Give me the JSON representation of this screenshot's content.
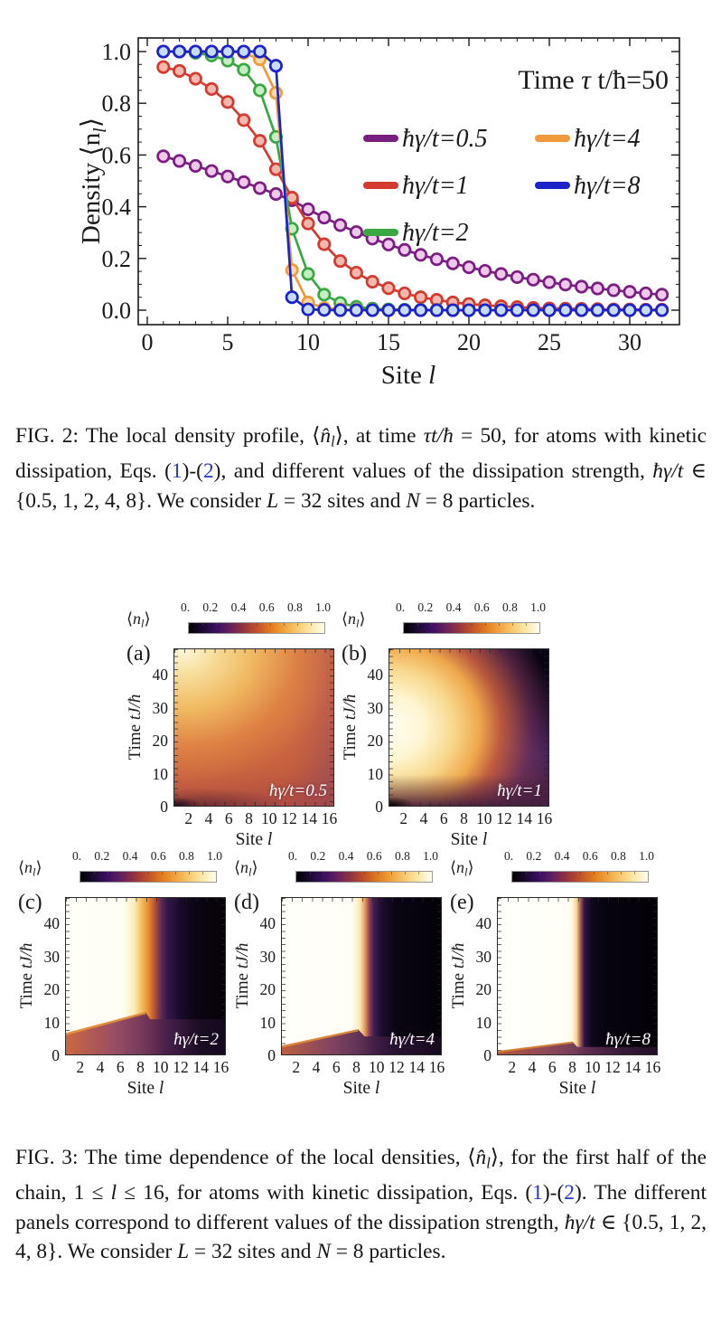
{
  "colors": {
    "link_blue": "#2737C8",
    "axis_ink": "#1a1a1a"
  },
  "chart_data": [
    {
      "type": "line",
      "title_segments": [
        {
          "t": "Time ",
          "s": ""
        },
        {
          "t": "τ",
          "s": "i"
        },
        {
          "t": " t/ħ=50",
          "s": ""
        }
      ],
      "xlabel_segments": [
        {
          "t": "Site ",
          "s": ""
        },
        {
          "t": "l",
          "s": "i"
        }
      ],
      "ylabel_main": "Density ⟨n",
      "ylabel_sub": "l",
      "ylabel_end": "⟩",
      "xlim": [
        0,
        32.5
      ],
      "ylim": [
        0.0,
        1.0
      ],
      "xticks": [
        0,
        5,
        10,
        15,
        20,
        25,
        30
      ],
      "ytick_labels": [
        "0.0",
        "0.2",
        "0.4",
        "0.6",
        "0.8",
        "1.0"
      ],
      "grid": false,
      "legend_position": "inside center-right, two columns",
      "marker": "open-circle",
      "x": [
        1,
        2,
        3,
        4,
        5,
        6,
        7,
        8,
        9,
        10,
        11,
        12,
        13,
        14,
        15,
        16,
        17,
        18,
        19,
        20,
        21,
        22,
        23,
        24,
        25,
        26,
        27,
        28,
        29,
        30,
        31,
        32
      ],
      "series": [
        {
          "name": "ħγ/t=0.5",
          "color": "#7B1E82",
          "fill": "#F0C8EC",
          "values": [
            0.595,
            0.577,
            0.558,
            0.538,
            0.517,
            0.495,
            0.472,
            0.449,
            0.425,
            0.39,
            0.358,
            0.329,
            0.302,
            0.277,
            0.254,
            0.233,
            0.214,
            0.197,
            0.181,
            0.166,
            0.152,
            0.14,
            0.128,
            0.118,
            0.108,
            0.099,
            0.091,
            0.084,
            0.077,
            0.071,
            0.065,
            0.06
          ]
        },
        {
          "name": "ħγ/t=1",
          "color": "#D43A2F",
          "fill": "#F6B8AE",
          "values": [
            0.94,
            0.925,
            0.895,
            0.855,
            0.805,
            0.735,
            0.655,
            0.545,
            0.435,
            0.335,
            0.255,
            0.19,
            0.145,
            0.11,
            0.085,
            0.065,
            0.05,
            0.04,
            0.03,
            0.024,
            0.019,
            0.015,
            0.012,
            0.009,
            0.007,
            0.006,
            0.005,
            0.004,
            0.003,
            0.003,
            0.002,
            0.002
          ]
        },
        {
          "name": "ħγ/t=2",
          "color": "#3BA743",
          "fill": "#C4EFC2",
          "values": [
            1,
            1,
            0.995,
            0.985,
            0.965,
            0.93,
            0.85,
            0.67,
            0.315,
            0.14,
            0.06,
            0.028,
            0.013,
            0.006,
            0.003,
            0.002,
            0.001,
            0.001,
            0,
            0,
            0,
            0,
            0,
            0,
            0,
            0,
            0,
            0,
            0,
            0,
            0,
            0
          ]
        },
        {
          "name": "ħγ/t=4",
          "color": "#F09A3C",
          "fill": "#FAD9A6",
          "values": [
            1,
            1,
            1,
            1,
            1,
            0.995,
            0.97,
            0.84,
            0.155,
            0.03,
            0.008,
            0.003,
            0.001,
            0,
            0,
            0,
            0,
            0,
            0,
            0,
            0,
            0,
            0,
            0,
            0,
            0,
            0,
            0,
            0,
            0,
            0,
            0
          ]
        },
        {
          "name": "ħγ/t=8",
          "color": "#1C23C8",
          "fill": "#C9DCF7",
          "values": [
            1,
            1,
            1,
            1,
            1,
            1,
            1,
            0.945,
            0.05,
            0.003,
            0.001,
            0,
            0,
            0,
            0,
            0,
            0,
            0,
            0,
            0,
            0,
            0,
            0,
            0,
            0,
            0,
            0,
            0,
            0,
            0,
            0,
            0
          ]
        }
      ],
      "legend_columns": [
        [
          0,
          1,
          2
        ],
        [
          3,
          4
        ]
      ]
    },
    {
      "type": "heatmap",
      "description": "Five density-map panels, site l (1-16) vs time tJ/ħ (0-48), colormap black-purple-orange-white over ⟨n_l⟩ in [0,1]",
      "axis": {
        "ylabel_segments": [
          {
            "t": "Time ",
            "s": ""
          },
          {
            "t": "tJ/ħ",
            "s": "i"
          }
        ],
        "xlabel_segments": [
          {
            "t": "Site ",
            "s": ""
          },
          {
            "t": "l",
            "s": "i"
          }
        ],
        "yticks": [
          0,
          10,
          20,
          30,
          40
        ],
        "xticks": [
          2,
          4,
          6,
          8,
          10,
          12,
          14,
          16
        ],
        "x_range": [
          1,
          16
        ],
        "y_range": [
          0,
          48
        ]
      },
      "colorbar": {
        "label_segments": [
          {
            "t": "⟨",
            "s": ""
          },
          {
            "t": "n",
            "s": "i"
          },
          {
            "t": "l",
            "s": "sub-i"
          },
          {
            "t": "⟩",
            "s": ""
          }
        ],
        "ticks": [
          "0.",
          "0.2",
          "0.4",
          "0.6",
          "0.8",
          "1.0"
        ],
        "range": [
          0,
          1
        ],
        "colormap_stops": [
          "#000000",
          "#3A1060",
          "#93333F",
          "#C0512A",
          "#E07B1F",
          "#F0A33C",
          "#F8C96E",
          "#FCE8A8",
          "#FFFEF0"
        ]
      },
      "t_samples": [
        0,
        10,
        20,
        30,
        45
      ],
      "panels": [
        {
          "letter": "(a)",
          "gamma_label": "ħγ/t=0.5",
          "gamma": 0.5,
          "grid": [
            [
              0.05,
              0.2,
              0.25,
              0.25,
              0.25,
              0.25,
              0.25,
              0.25,
              0.25,
              0.25,
              0.25,
              0.25,
              0.25,
              0.25,
              0.25,
              0.25
            ],
            [
              0.82,
              0.8,
              0.77,
              0.74,
              0.71,
              0.68,
              0.65,
              0.62,
              0.6,
              0.58,
              0.56,
              0.54,
              0.52,
              0.5,
              0.49,
              0.48
            ],
            [
              0.9,
              0.87,
              0.84,
              0.8,
              0.76,
              0.72,
              0.68,
              0.65,
              0.62,
              0.59,
              0.56,
              0.54,
              0.52,
              0.5,
              0.48,
              0.46
            ],
            [
              0.93,
              0.9,
              0.86,
              0.82,
              0.78,
              0.74,
              0.7,
              0.66,
              0.63,
              0.6,
              0.57,
              0.54,
              0.51,
              0.48,
              0.45,
              0.43
            ],
            [
              0.95,
              0.92,
              0.88,
              0.84,
              0.79,
              0.75,
              0.71,
              0.67,
              0.63,
              0.59,
              0.56,
              0.52,
              0.49,
              0.46,
              0.43,
              0.4
            ]
          ]
        },
        {
          "letter": "(b)",
          "gamma_label": "ħγ/t=1",
          "gamma": 1,
          "grid": [
            [
              0.05,
              0.22,
              0.25,
              0.25,
              0.25,
              0.25,
              0.25,
              0.25,
              0.25,
              0.25,
              0.25,
              0.25,
              0.25,
              0.25,
              0.25,
              0.25
            ],
            [
              0.93,
              0.88,
              0.82,
              0.75,
              0.68,
              0.6,
              0.52,
              0.45,
              0.39,
              0.34,
              0.3,
              0.27,
              0.25,
              0.24,
              0.23,
              0.22
            ],
            [
              0.97,
              0.93,
              0.87,
              0.79,
              0.7,
              0.61,
              0.52,
              0.43,
              0.35,
              0.28,
              0.23,
              0.19,
              0.16,
              0.14,
              0.13,
              0.12
            ],
            [
              0.98,
              0.95,
              0.9,
              0.82,
              0.72,
              0.62,
              0.52,
              0.42,
              0.33,
              0.25,
              0.19,
              0.15,
              0.12,
              0.1,
              0.08,
              0.07
            ],
            [
              0.99,
              0.97,
              0.92,
              0.84,
              0.74,
              0.63,
              0.52,
              0.41,
              0.31,
              0.23,
              0.16,
              0.12,
              0.09,
              0.07,
              0.05,
              0.04
            ]
          ]
        },
        {
          "letter": "(c)",
          "gamma_label": "ħγ/t=2",
          "gamma": 2,
          "grid": [
            [
              0.25,
              0.25,
              0.25,
              0.25,
              0.25,
              0.25,
              0.25,
              0.25,
              0.25,
              0.25,
              0.25,
              0.25,
              0.25,
              0.25,
              0.25,
              0.25
            ],
            [
              1,
              1,
              0.99,
              0.97,
              0.93,
              0.86,
              0.76,
              0.62,
              0.45,
              0.33,
              0.28,
              0.26,
              0.25,
              0.25,
              0.24,
              0.24
            ],
            [
              1,
              1,
              1,
              0.99,
              0.97,
              0.92,
              0.82,
              0.65,
              0.42,
              0.22,
              0.12,
              0.07,
              0.05,
              0.04,
              0.03,
              0.03
            ],
            [
              1,
              1,
              1,
              0.99,
              0.97,
              0.92,
              0.82,
              0.65,
              0.4,
              0.19,
              0.09,
              0.04,
              0.02,
              0.02,
              0.01,
              0.01
            ],
            [
              1,
              1,
              1,
              0.99,
              0.97,
              0.92,
              0.82,
              0.65,
              0.4,
              0.18,
              0.08,
              0.03,
              0.02,
              0.01,
              0.01,
              0.01
            ]
          ]
        },
        {
          "letter": "(d)",
          "gamma_label": "ħγ/t=4",
          "gamma": 4,
          "grid": [
            [
              0.25,
              0.25,
              0.25,
              0.25,
              0.25,
              0.25,
              0.25,
              0.25,
              0.25,
              0.25,
              0.25,
              0.25,
              0.25,
              0.25,
              0.25,
              0.25
            ],
            [
              1,
              1,
              1,
              1,
              0.99,
              0.98,
              0.94,
              0.84,
              0.55,
              0.15,
              0.05,
              0.02,
              0.01,
              0.01,
              0,
              0
            ],
            [
              1,
              1,
              1,
              1,
              1,
              0.99,
              0.96,
              0.86,
              0.45,
              0.08,
              0.02,
              0.01,
              0,
              0,
              0,
              0
            ],
            [
              1,
              1,
              1,
              1,
              1,
              0.99,
              0.96,
              0.86,
              0.45,
              0.08,
              0.02,
              0.01,
              0,
              0,
              0,
              0
            ],
            [
              1,
              1,
              1,
              1,
              1,
              0.99,
              0.96,
              0.86,
              0.45,
              0.08,
              0.02,
              0.01,
              0,
              0,
              0,
              0
            ]
          ]
        },
        {
          "letter": "(e)",
          "gamma_label": "ħγ/t=8",
          "gamma": 8,
          "grid": [
            [
              0.25,
              0.25,
              0.25,
              0.25,
              0.25,
              0.25,
              0.25,
              0.25,
              0.25,
              0.25,
              0.25,
              0.25,
              0.25,
              0.25,
              0.25,
              0.25
            ],
            [
              1,
              1,
              1,
              1,
              1,
              1,
              0.99,
              0.93,
              0.15,
              0.02,
              0,
              0,
              0,
              0,
              0,
              0
            ],
            [
              1,
              1,
              1,
              1,
              1,
              1,
              0.99,
              0.93,
              0.12,
              0.01,
              0,
              0,
              0,
              0,
              0,
              0
            ],
            [
              1,
              1,
              1,
              1,
              1,
              1,
              0.99,
              0.93,
              0.12,
              0.01,
              0,
              0,
              0,
              0,
              0,
              0
            ],
            [
              1,
              1,
              1,
              1,
              1,
              1,
              0.99,
              0.93,
              0.12,
              0.01,
              0,
              0,
              0,
              0,
              0,
              0
            ]
          ]
        }
      ]
    }
  ],
  "captions": {
    "fig2": {
      "segments": [
        {
          "t": "FIG. 2:  The local density profile, ⟨",
          "s": ""
        },
        {
          "t": "n̂",
          "s": "i"
        },
        {
          "t": "l",
          "s": "sub-i"
        },
        {
          "t": "⟩, at time ",
          "s": ""
        },
        {
          "t": "τt/ħ",
          "s": "i"
        },
        {
          "t": " = 50, for atoms with kinetic dissipation, Eqs. (",
          "s": ""
        },
        {
          "t": "1",
          "s": "link"
        },
        {
          "t": ")-(",
          "s": ""
        },
        {
          "t": "2",
          "s": "link"
        },
        {
          "t": "), and different values of the dissipation strength, ",
          "s": ""
        },
        {
          "t": "ħγ/t",
          "s": "i"
        },
        {
          "t": " ∈ {0.5, 1, 2, 4, 8}.  We consider ",
          "s": ""
        },
        {
          "t": "L",
          "s": "i"
        },
        {
          "t": " = 32 sites and ",
          "s": ""
        },
        {
          "t": "N",
          "s": "i"
        },
        {
          "t": " = 8 particles.",
          "s": ""
        }
      ]
    },
    "fig3": {
      "segments": [
        {
          "t": "FIG. 3:  The time dependence of the local densities, ⟨",
          "s": ""
        },
        {
          "t": "n̂",
          "s": "i"
        },
        {
          "t": "l",
          "s": "sub-i"
        },
        {
          "t": "⟩, for the first half of the chain, 1 ≤ ",
          "s": ""
        },
        {
          "t": "l",
          "s": "i"
        },
        {
          "t": " ≤ 16, for atoms with kinetic dissipation, Eqs. (",
          "s": ""
        },
        {
          "t": "1",
          "s": "link"
        },
        {
          "t": ")-(",
          "s": ""
        },
        {
          "t": "2",
          "s": "link"
        },
        {
          "t": ").  The different panels correspond to different values of the dissipation strength, ",
          "s": ""
        },
        {
          "t": "ħγ/t",
          "s": "i"
        },
        {
          "t": " ∈ {0.5, 1, 2, 4, 8}.  We consider ",
          "s": ""
        },
        {
          "t": "L",
          "s": "i"
        },
        {
          "t": " = 32 sites and ",
          "s": ""
        },
        {
          "t": "N",
          "s": "i"
        },
        {
          "t": " = 8 particles.",
          "s": ""
        }
      ]
    }
  }
}
